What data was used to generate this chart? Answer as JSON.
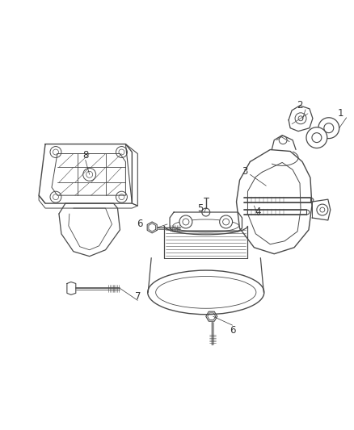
{
  "background_color": "#ffffff",
  "line_color": "#4a4a4a",
  "label_color": "#333333",
  "figsize": [
    4.38,
    5.33
  ],
  "dpi": 100,
  "label_fontsize": 8.5
}
